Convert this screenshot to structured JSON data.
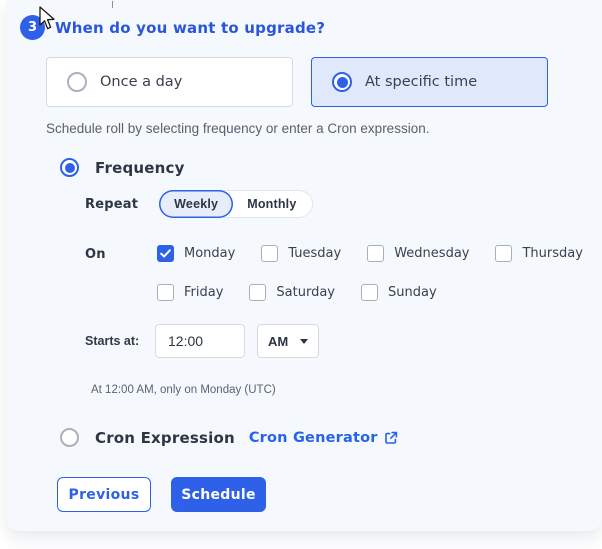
{
  "colors": {
    "primary": "#2e61e8",
    "heading_text": "#2a56d9",
    "card_bg": "#f5f8fd",
    "selected_option_bg": "#dfe9fb",
    "dark_text": "#2d3644",
    "muted_text": "#59616f",
    "link_blue": "#2563eb"
  },
  "step": {
    "number": "3",
    "title": "When do you want to upgrade?"
  },
  "schedule_type_options": [
    {
      "label": "Once a day",
      "selected": false
    },
    {
      "label": "At specific time",
      "selected": true
    }
  ],
  "helper_text": "Schedule roll by selecting frequency or enter a Cron expression.",
  "frequency_section": {
    "radio_label": "Frequency",
    "selected": true,
    "repeat_label": "Repeat",
    "repeat_options": [
      {
        "label": "Weekly",
        "selected": true
      },
      {
        "label": "Monthly",
        "selected": false
      }
    ],
    "on_label": "On",
    "days": [
      {
        "label": "Monday",
        "checked": true
      },
      {
        "label": "Tuesday",
        "checked": false
      },
      {
        "label": "Wednesday",
        "checked": false
      },
      {
        "label": "Thursday",
        "checked": false
      },
      {
        "label": "Friday",
        "checked": false
      },
      {
        "label": "Saturday",
        "checked": false
      },
      {
        "label": "Sunday",
        "checked": false
      }
    ],
    "starts_at_label": "Starts at:",
    "time_value": "12:00",
    "meridiem_value": "AM",
    "summary": "At 12:00 AM, only on Monday (UTC)"
  },
  "cron_section": {
    "radio_label": "Cron Expression",
    "selected": false,
    "link_label": "Cron Generator"
  },
  "footer": {
    "previous_label": "Previous",
    "schedule_label": "Schedule"
  }
}
